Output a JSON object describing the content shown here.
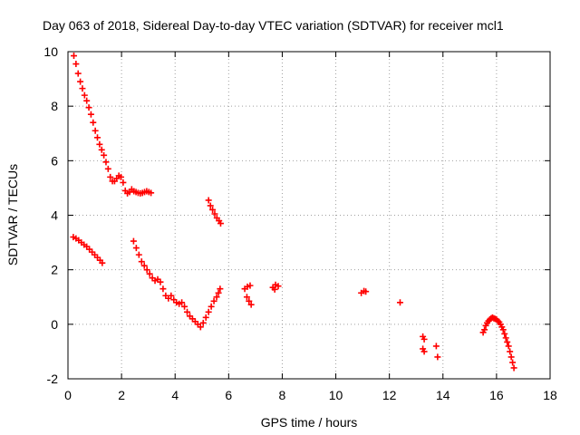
{
  "chart_data": {
    "type": "scatter",
    "title": "Day 063 of 2018, Sidereal Day-to-day VTEC variation (SDTVAR) for receiver mcl1",
    "xlabel": "GPS time / hours",
    "ylabel": "SDTVAR / TECUs",
    "xlim": [
      0,
      18
    ],
    "ylim": [
      -2,
      10
    ],
    "xticks": [
      "0",
      "2",
      "4",
      "6",
      "8",
      "10",
      "12",
      "14",
      "16",
      "18"
    ],
    "yticks": [
      "-2",
      "0",
      "2",
      "4",
      "6",
      "8",
      "10"
    ],
    "grid": true,
    "marker": "plus",
    "color": "#ff0000",
    "series": [
      {
        "name": "SDTVAR",
        "x": [
          0.22,
          0.3,
          0.38,
          0.46,
          0.54,
          0.62,
          0.7,
          0.78,
          0.86,
          0.94,
          1.02,
          1.1,
          1.18,
          1.26,
          1.34,
          1.42,
          1.5,
          1.58,
          1.66,
          1.74,
          1.82,
          1.9,
          1.98,
          2.06,
          2.14,
          2.22,
          2.3,
          2.38,
          2.46,
          2.54,
          2.62,
          2.7,
          2.78,
          2.86,
          2.94,
          3.02,
          3.1,
          0.2,
          0.3,
          0.4,
          0.5,
          0.6,
          0.7,
          0.8,
          0.9,
          1.0,
          1.1,
          1.2,
          1.28,
          2.45,
          2.55,
          2.65,
          2.75,
          2.85,
          2.95,
          3.05,
          3.15,
          3.25,
          3.35,
          3.45,
          3.55,
          3.65,
          3.75,
          3.85,
          3.95,
          4.05,
          4.15,
          4.25,
          4.35,
          4.45,
          4.55,
          4.65,
          4.75,
          4.85,
          4.95,
          5.05,
          5.15,
          5.25,
          5.35,
          5.45,
          5.55,
          5.62,
          5.68,
          5.25,
          5.32,
          5.4,
          5.48,
          5.56,
          5.64,
          5.7,
          6.6,
          6.7,
          6.8,
          6.68,
          6.76,
          6.84,
          7.65,
          7.75,
          7.85,
          7.72,
          10.95,
          11.05,
          11.12,
          12.4,
          13.25,
          13.3,
          13.25,
          13.3,
          13.75,
          13.8,
          15.5,
          15.55,
          15.6,
          15.65,
          15.7,
          15.75,
          15.8,
          15.85,
          15.9,
          15.95,
          16.0,
          16.05,
          16.1,
          16.15,
          16.2,
          16.25,
          16.3,
          16.35,
          16.4,
          16.45,
          16.5,
          16.55,
          16.6,
          16.65
        ],
        "y": [
          9.85,
          9.55,
          9.2,
          8.9,
          8.65,
          8.4,
          8.2,
          7.95,
          7.7,
          7.4,
          7.1,
          6.85,
          6.6,
          6.4,
          6.2,
          5.95,
          5.7,
          5.4,
          5.25,
          5.25,
          5.35,
          5.45,
          5.4,
          5.2,
          4.9,
          4.8,
          4.85,
          4.95,
          4.88,
          4.85,
          4.82,
          4.8,
          4.82,
          4.85,
          4.88,
          4.85,
          4.82,
          3.2,
          3.15,
          3.08,
          3.0,
          2.92,
          2.85,
          2.75,
          2.65,
          2.55,
          2.45,
          2.35,
          2.25,
          3.05,
          2.8,
          2.55,
          2.3,
          2.15,
          2.0,
          1.85,
          1.7,
          1.6,
          1.65,
          1.55,
          1.3,
          1.05,
          0.95,
          1.05,
          0.9,
          0.8,
          0.75,
          0.8,
          0.65,
          0.45,
          0.3,
          0.2,
          0.1,
          0.0,
          -0.1,
          0.05,
          0.25,
          0.45,
          0.65,
          0.85,
          1.0,
          1.15,
          1.3,
          4.55,
          4.35,
          4.2,
          4.05,
          3.9,
          3.8,
          3.7,
          1.3,
          1.38,
          1.42,
          1.0,
          0.85,
          0.72,
          1.35,
          1.45,
          1.4,
          1.28,
          1.15,
          1.22,
          1.2,
          0.8,
          -0.45,
          -0.55,
          -0.9,
          -1.0,
          -0.8,
          -1.2,
          -0.3,
          -0.2,
          -0.05,
          0.05,
          0.12,
          0.18,
          0.22,
          0.25,
          0.22,
          0.2,
          0.18,
          0.12,
          0.08,
          0.0,
          -0.1,
          -0.2,
          -0.35,
          -0.5,
          -0.65,
          -0.8,
          -1.0,
          -1.2,
          -1.4,
          -1.6
        ]
      }
    ]
  }
}
